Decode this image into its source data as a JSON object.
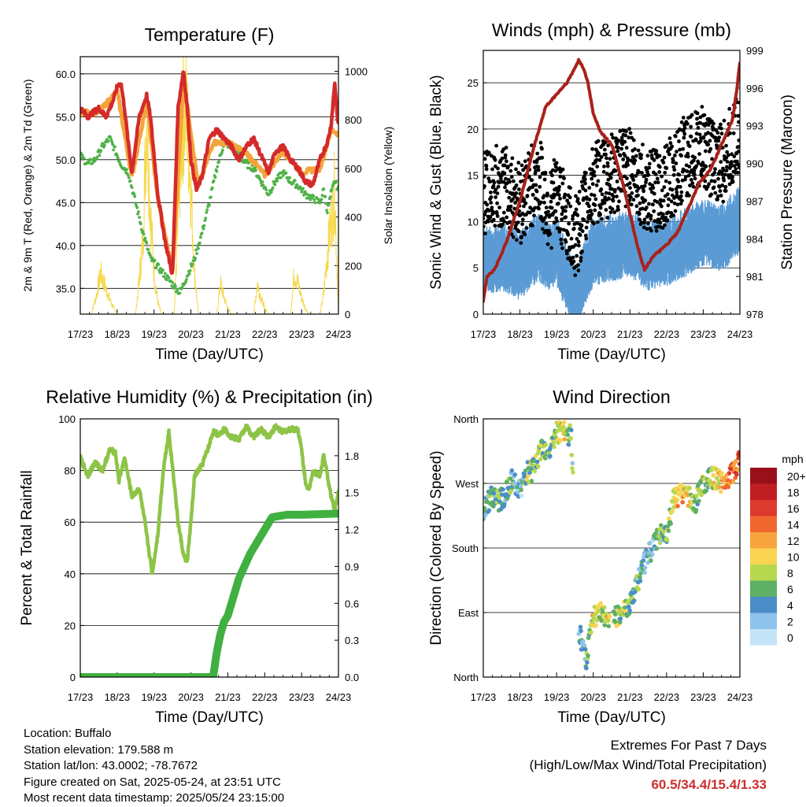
{
  "x_ticks": [
    "17/23",
    "18/23",
    "19/23",
    "20/23",
    "21/23",
    "22/23",
    "23/23",
    "24/23"
  ],
  "x_label": "Time (Day/UTC)",
  "footer": {
    "location": "Location: Buffalo",
    "elevation": "Station elevation: 179.588 m",
    "latlon": "Station lat/lon: 43.0002; -78.7672",
    "created": "Figure created on Sat, 2025-05-24, at 23:51 UTC",
    "recent": "Most recent data timestamp: 2025/05/24 23:15:00"
  },
  "extremes": {
    "title": "Extremes For Past 7 Days",
    "subtitle": "(High/Low/Max Wind/Total Precipitation)",
    "values": "60.5/34.4/15.4/1.33",
    "color": "#cc2e2e"
  },
  "chart_data": [
    {
      "type": "line",
      "title": "Temperature (F)",
      "ylabel": "2m & 9m T (Red, Orange) & 2m Td (Green)",
      "ylabel_right": "Solar Insolation (Yellow)",
      "ylim": [
        32,
        62
      ],
      "yticks": [
        "35.0",
        "40.0",
        "45.0",
        "50.0",
        "55.0",
        "60.0"
      ],
      "ylim_right": [
        0,
        1060
      ],
      "yticks_right": [
        "0",
        "200",
        "400",
        "600",
        "800",
        "1000"
      ],
      "grid": true,
      "colors": {
        "temp_2m": "#d42a2a",
        "temp_9m": "#f3a43a",
        "dewpoint": "#4fb248",
        "solar": "#f6d84a"
      },
      "series": [
        {
          "key": "temp_2m",
          "x": [
            0,
            0.2,
            0.5,
            0.7,
            0.9,
            1.0,
            1.1,
            1.2,
            1.3,
            1.4,
            1.6,
            1.8,
            1.9,
            2.1,
            2.3,
            2.5,
            2.65,
            2.8,
            2.9,
            3.0,
            3.15,
            3.3,
            3.5,
            3.7,
            3.9,
            4.1,
            4.3,
            4.5,
            4.7,
            4.9,
            5.1,
            5.3,
            5.5,
            5.7,
            5.9,
            6.1,
            6.3,
            6.5,
            6.7,
            6.8,
            6.9,
            7.0
          ],
          "y": [
            56.0,
            55.0,
            56.0,
            55.0,
            57.0,
            58.5,
            59.0,
            56.0,
            52.0,
            48.5,
            55.0,
            57.5,
            55.0,
            46.0,
            40.5,
            36.5,
            56.0,
            60.5,
            56.0,
            50.0,
            46.5,
            48.0,
            52.5,
            53.5,
            52.5,
            51.5,
            50.0,
            51.5,
            52.5,
            50.5,
            48.5,
            51.0,
            51.5,
            50.0,
            49.0,
            47.5,
            47.0,
            50.0,
            52.0,
            54.0,
            59.0,
            53.5
          ]
        },
        {
          "key": "temp_9m",
          "x": [
            0,
            0.5,
            1.0,
            1.4,
            1.8,
            2.1,
            2.5,
            2.8,
            3.2,
            3.6,
            4.0,
            4.5,
            5.0,
            5.5,
            6.0,
            6.5,
            6.8,
            7.0
          ],
          "y": [
            55.5,
            55.5,
            58.0,
            48.0,
            56.8,
            45.5,
            36.8,
            59.5,
            46.8,
            52.0,
            52.0,
            50.8,
            48.2,
            51.0,
            48.5,
            49.0,
            53.5,
            53.0
          ]
        },
        {
          "key": "dewpoint",
          "x": [
            0,
            0.2,
            0.4,
            0.6,
            0.8,
            0.95,
            1.1,
            1.3,
            1.5,
            1.7,
            1.9,
            2.1,
            2.3,
            2.5,
            2.7,
            2.9,
            3.1,
            3.3,
            3.5,
            3.7,
            3.9,
            4.1,
            4.3,
            4.5,
            4.7,
            4.9,
            5.1,
            5.3,
            5.5,
            5.7,
            5.9,
            6.1,
            6.3,
            6.5,
            6.6,
            6.7,
            6.8,
            6.9,
            7.0
          ],
          "y": [
            50.5,
            49.5,
            50.0,
            51.5,
            52.5,
            51.0,
            49.5,
            48.5,
            45.0,
            41.5,
            38.5,
            37.5,
            36.5,
            35.5,
            34.5,
            36.5,
            38.5,
            41.5,
            45.0,
            49.0,
            52.0,
            51.5,
            50.5,
            49.5,
            49.0,
            47.5,
            46.0,
            47.5,
            48.5,
            47.5,
            47.0,
            46.0,
            45.5,
            45.0,
            46.5,
            44.0,
            46.0,
            47.5,
            46.5
          ]
        },
        {
          "key": "solar",
          "x": [
            0,
            0.3,
            0.45,
            0.55,
            0.7,
            0.85,
            1.0,
            1.2,
            1.5,
            1.7,
            1.8,
            1.9,
            2.0,
            2.1,
            2.2,
            2.5,
            2.55,
            2.7,
            2.8,
            2.9,
            3.0,
            3.1,
            3.2,
            3.5,
            3.7,
            3.8,
            3.9,
            4.0,
            4.1,
            4.2,
            4.5,
            4.7,
            4.8,
            4.9,
            5.0,
            5.1,
            5.2,
            5.5,
            5.7,
            5.8,
            5.9,
            6.0,
            6.1,
            6.2,
            6.5,
            6.6,
            6.7,
            6.8,
            6.9,
            7.0
          ],
          "y": [
            0,
            0,
            100,
            200,
            120,
            50,
            0,
            0,
            0,
            350,
            1000,
            500,
            200,
            60,
            0,
            0,
            0,
            700,
            1000,
            950,
            600,
            200,
            0,
            0,
            0,
            150,
            80,
            30,
            0,
            0,
            0,
            0,
            150,
            80,
            30,
            0,
            0,
            0,
            0,
            200,
            150,
            80,
            30,
            0,
            0,
            100,
            300,
            450,
            600,
            0
          ]
        }
      ]
    },
    {
      "type": "scatter",
      "title": "Winds (mph) & Pressure (mb)",
      "ylabel": "Sonic Wind & Gust (Blue, Black)",
      "ylabel_right": "Station Pressure (Maroon)",
      "ylim": [
        0,
        28.5
      ],
      "yticks": [
        "0",
        "5",
        "10",
        "15",
        "20",
        "25"
      ],
      "ylim_right": [
        978,
        999
      ],
      "yticks_right": [
        "978",
        "981",
        "984",
        "987",
        "990",
        "993",
        "996",
        "999"
      ],
      "grid": true,
      "colors": {
        "wind": "#5a9bd5",
        "gust": "#000000",
        "pressure": "#a8221c"
      },
      "series": [
        {
          "key": "wind",
          "x": [
            0,
            0.5,
            1.0,
            1.5,
            1.8,
            2.0,
            2.5,
            3.0,
            3.5,
            4.0,
            4.5,
            5.0,
            5.5,
            6.0,
            6.5,
            7.0
          ],
          "y": [
            5.5,
            6.0,
            5.0,
            7.0,
            6.0,
            6.5,
            1.5,
            6.5,
            7.0,
            7.5,
            6.0,
            6.5,
            7.5,
            8.5,
            8.0,
            10.0
          ]
        },
        {
          "key": "gust",
          "x": [
            0,
            0.5,
            1.0,
            1.5,
            1.8,
            2.0,
            2.5,
            3.0,
            3.5,
            4.0,
            4.5,
            5.0,
            5.5,
            6.0,
            6.5,
            7.0
          ],
          "y": [
            13,
            14,
            12,
            15,
            11,
            13,
            8,
            14,
            15,
            16,
            13,
            14,
            17,
            18,
            16,
            20
          ]
        },
        {
          "key": "pressure",
          "x": [
            0,
            0.1,
            0.3,
            0.6,
            1.0,
            1.4,
            1.7,
            2.0,
            2.3,
            2.5,
            2.6,
            2.7,
            2.85,
            3.0,
            3.2,
            3.5,
            3.8,
            4.0,
            4.2,
            4.4,
            4.6,
            4.8,
            5.0,
            5.3,
            5.6,
            5.9,
            6.2,
            6.5,
            6.8,
            6.9,
            7.0
          ],
          "y": [
            979.0,
            981.0,
            981.5,
            983.5,
            987.0,
            991.5,
            994.5,
            995.5,
            996.5,
            997.6,
            998.2,
            997.8,
            996.5,
            994.0,
            992.5,
            991.5,
            988.5,
            986.0,
            983.5,
            981.5,
            982.5,
            983.0,
            983.5,
            984.5,
            986.5,
            988.5,
            989.5,
            991.5,
            993.5,
            995.5,
            998.0
          ]
        }
      ]
    },
    {
      "type": "line",
      "title": "Relative Humidity (%) & Precipitation (in)",
      "ylabel": "Percent & Total Rainfall",
      "ylim": [
        0,
        100
      ],
      "yticks": [
        "0",
        "20",
        "40",
        "60",
        "80",
        "100"
      ],
      "ylim_right": [
        0,
        2.1
      ],
      "yticks_right": [
        "0.0",
        "0.3",
        "0.6",
        "0.9",
        "1.2",
        "1.5",
        "1.8"
      ],
      "grid": true,
      "colors": {
        "rh": "#8dc447",
        "precip": "#40b040"
      },
      "series": [
        {
          "key": "rh",
          "x": [
            0,
            0.2,
            0.4,
            0.6,
            0.8,
            0.95,
            1.05,
            1.2,
            1.4,
            1.6,
            1.75,
            1.85,
            1.95,
            2.1,
            2.25,
            2.4,
            2.55,
            2.65,
            2.8,
            2.9,
            3.0,
            3.1,
            3.3,
            3.5,
            3.6,
            3.75,
            3.9,
            4.1,
            4.3,
            4.5,
            4.7,
            4.9,
            5.1,
            5.3,
            5.5,
            5.7,
            5.9,
            6.0,
            6.1,
            6.2,
            6.3,
            6.5,
            6.6,
            6.8,
            6.9,
            7.0
          ],
          "y": [
            85,
            78,
            83,
            80,
            88,
            87,
            76,
            85,
            70,
            73,
            60,
            50,
            40,
            55,
            80,
            95,
            75,
            60,
            47,
            45,
            60,
            78,
            82,
            90,
            95,
            94,
            96,
            93,
            92,
            97,
            93,
            96,
            93,
            97,
            95,
            96,
            96,
            88,
            76,
            72,
            80,
            78,
            86,
            70,
            65,
            72
          ]
        },
        {
          "key": "precip",
          "x": [
            0,
            3.6,
            3.7,
            3.8,
            3.9,
            4.0,
            4.3,
            4.6,
            4.9,
            5.1,
            5.2,
            5.4,
            5.6,
            6.0,
            7.0
          ],
          "y": [
            0,
            0,
            0.2,
            0.35,
            0.45,
            0.5,
            0.8,
            1.0,
            1.15,
            1.25,
            1.3,
            1.31,
            1.32,
            1.32,
            1.33
          ]
        }
      ]
    },
    {
      "type": "scatter",
      "title": "Wind Direction",
      "ylabel": "Direction (Colored By Speed)",
      "ylim": [
        0,
        360
      ],
      "yticks": [
        "North",
        "East",
        "South",
        "West",
        "North"
      ],
      "legend_title": "mph",
      "legend_labels": [
        "20+",
        "18",
        "16",
        "14",
        "12",
        "10",
        "8",
        "6",
        "4",
        "2",
        "0"
      ],
      "legend_colors": [
        "#99101a",
        "#bf1f22",
        "#db3a2c",
        "#f0672f",
        "#f7a43e",
        "#fbd353",
        "#b6d84e",
        "#5db065",
        "#4a8dc8",
        "#8ec3eb",
        "#c4e3f7"
      ],
      "series": [
        {
          "name": "direction",
          "x": [
            0,
            0.2,
            0.4,
            0.6,
            0.8,
            1.0,
            1.2,
            1.4,
            1.6,
            1.8,
            2.0,
            2.2,
            2.4,
            2.6,
            2.8,
            3.0,
            3.2,
            3.4,
            3.6,
            3.8,
            4.0,
            4.2,
            4.4,
            4.6,
            4.8,
            5.0,
            5.2,
            5.4,
            5.6,
            5.8,
            6.0,
            6.2,
            6.4,
            6.6,
            6.8,
            7.0
          ],
          "y": [
            235,
            250,
            245,
            255,
            275,
            260,
            285,
            290,
            320,
            310,
            340,
            345,
            335,
            70,
            20,
            85,
            90,
            80,
            85,
            90,
            100,
            130,
            160,
            180,
            200,
            195,
            250,
            255,
            250,
            245,
            270,
            280,
            275,
            270,
            285,
            305
          ],
          "speed": [
            4,
            5,
            6,
            4,
            5,
            3,
            7,
            6,
            8,
            5,
            7,
            9,
            6,
            3,
            4,
            10,
            8,
            9,
            7,
            8,
            6,
            5,
            4,
            3,
            5,
            6,
            10,
            12,
            9,
            8,
            6,
            7,
            10,
            12,
            14,
            16
          ]
        }
      ]
    }
  ]
}
